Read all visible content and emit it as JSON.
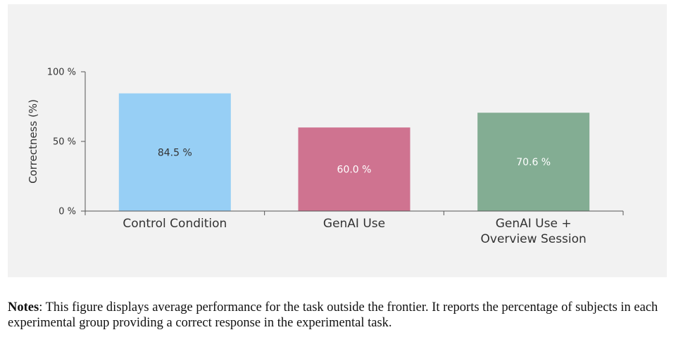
{
  "chart_data": {
    "type": "bar",
    "categories": [
      [
        "Control Condition"
      ],
      [
        "GenAI Use"
      ],
      [
        "GenAI Use +",
        "Overview Session"
      ]
    ],
    "values": [
      84.5,
      60.0,
      70.6
    ],
    "value_labels": [
      "84.5 %",
      "60.0 %",
      "70.6 %"
    ],
    "colors": [
      "#97cff5",
      "#cf7390",
      "#83ad93"
    ],
    "value_label_colors": [
      "#333333",
      "#ffffff",
      "#ffffff"
    ],
    "ylabel": "Correctness (%)",
    "ylim": [
      0,
      100
    ],
    "yticks": [
      0,
      50,
      100
    ],
    "ytick_labels": [
      "0 %",
      "50 %",
      "100 %"
    ],
    "grid": false
  },
  "notes": {
    "label": "Notes",
    "text": ": This figure displays average performance for the task outside the frontier. It reports the percentage of subjects in each experimental group providing a correct response in the experimental task."
  }
}
